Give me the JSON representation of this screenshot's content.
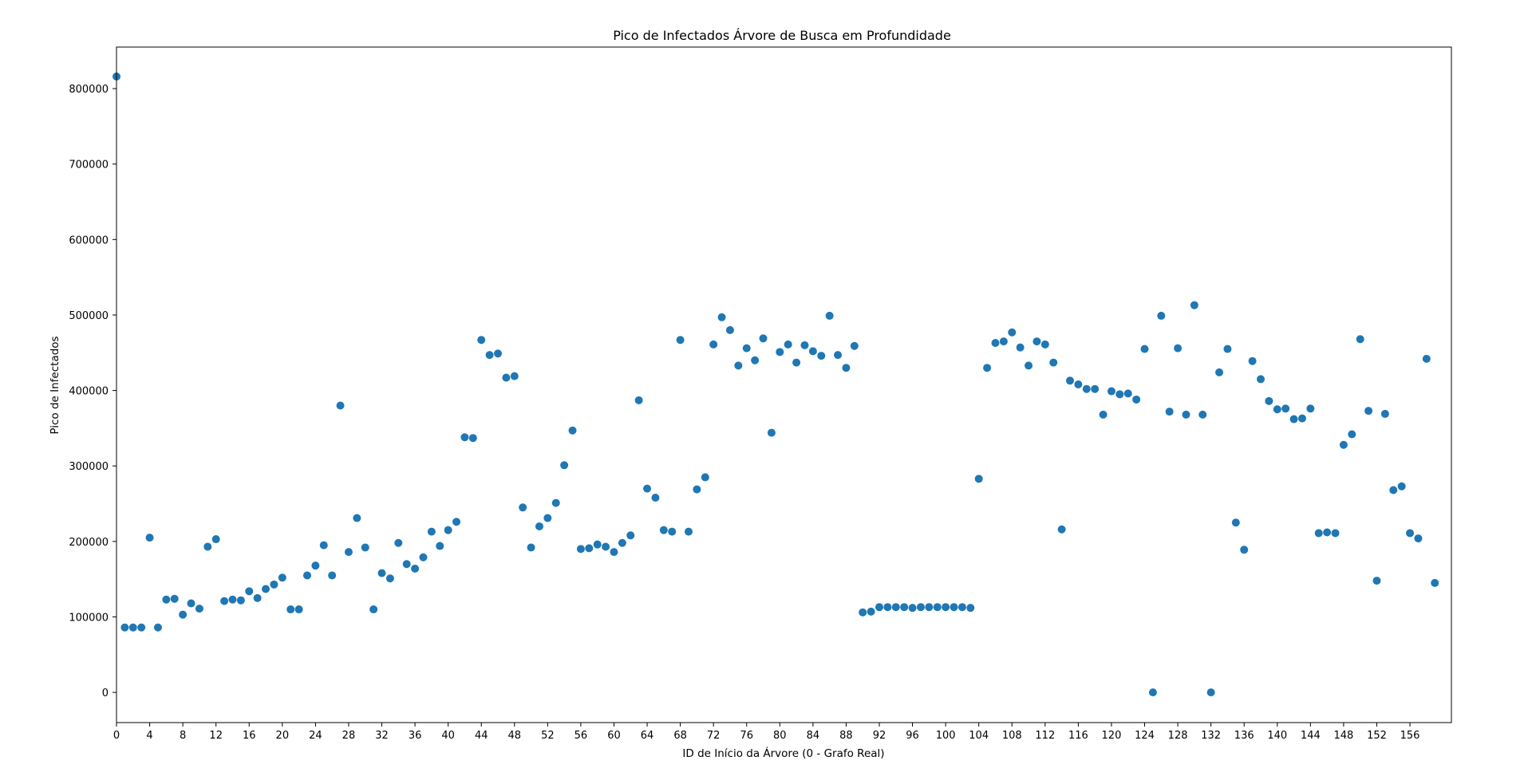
{
  "chart_data": {
    "type": "scatter",
    "title": "Pico de Infectados Árvore de Busca em Profundidade",
    "xlabel": "ID de Início da Árvore (0 - Grafo Real)",
    "ylabel": "Pico de Infectados",
    "xlim": [
      0,
      161
    ],
    "ylim": [
      -40000,
      855000
    ],
    "xticks": [
      0,
      4,
      8,
      12,
      16,
      20,
      24,
      28,
      32,
      36,
      40,
      44,
      48,
      52,
      56,
      60,
      64,
      68,
      72,
      76,
      80,
      84,
      88,
      92,
      96,
      100,
      104,
      108,
      112,
      116,
      120,
      124,
      128,
      132,
      136,
      140,
      144,
      148,
      152,
      156
    ],
    "yticks": [
      0,
      100000,
      200000,
      300000,
      400000,
      500000,
      600000,
      700000,
      800000
    ],
    "grid": false,
    "point_color": "#1f77b4",
    "x": [
      0,
      1,
      2,
      3,
      4,
      5,
      6,
      7,
      8,
      9,
      10,
      11,
      12,
      13,
      14,
      15,
      16,
      17,
      18,
      19,
      20,
      21,
      22,
      23,
      24,
      25,
      26,
      27,
      28,
      29,
      30,
      31,
      32,
      33,
      34,
      35,
      36,
      37,
      38,
      39,
      40,
      41,
      42,
      43,
      44,
      45,
      46,
      47,
      48,
      49,
      50,
      51,
      52,
      53,
      54,
      55,
      56,
      57,
      58,
      59,
      60,
      61,
      62,
      63,
      64,
      65,
      66,
      67,
      68,
      69,
      70,
      71,
      72,
      73,
      74,
      75,
      76,
      77,
      78,
      79,
      80,
      81,
      82,
      83,
      84,
      85,
      86,
      87,
      88,
      89,
      90,
      91,
      92,
      93,
      94,
      95,
      96,
      97,
      98,
      99,
      100,
      101,
      102,
      103,
      104,
      105,
      106,
      107,
      108,
      109,
      110,
      111,
      112,
      113,
      114,
      115,
      116,
      117,
      118,
      119,
      120,
      121,
      122,
      123,
      124,
      125,
      126,
      127,
      128,
      129,
      130,
      131,
      132,
      133,
      134,
      135,
      136,
      137,
      138,
      139,
      140,
      141,
      142,
      143,
      144,
      145,
      146,
      147,
      148,
      149,
      150,
      151,
      152,
      153,
      154,
      155,
      156,
      157,
      158,
      159
    ],
    "y": [
      816000,
      86000,
      86000,
      86000,
      205000,
      86000,
      123000,
      124000,
      103000,
      118000,
      111000,
      193000,
      203000,
      121000,
      123000,
      122000,
      134000,
      125000,
      137000,
      143000,
      152000,
      110000,
      110000,
      155000,
      168000,
      195000,
      155000,
      380000,
      186000,
      231000,
      192000,
      110000,
      158000,
      151000,
      198000,
      170000,
      164000,
      179000,
      213000,
      194000,
      215000,
      226000,
      338000,
      337000,
      467000,
      447000,
      449000,
      417000,
      419000,
      245000,
      192000,
      220000,
      231000,
      251000,
      301000,
      347000,
      190000,
      191000,
      196000,
      193000,
      186000,
      198000,
      208000,
      387000,
      270000,
      258000,
      215000,
      213000,
      467000,
      213000,
      269000,
      285000,
      461000,
      497000,
      480000,
      433000,
      456000,
      440000,
      469000,
      344000,
      451000,
      461000,
      437000,
      460000,
      452000,
      446000,
      499000,
      447000,
      430000,
      459000,
      106000,
      107000,
      113000,
      113000,
      113000,
      113000,
      112000,
      113000,
      113000,
      113000,
      113000,
      113000,
      113000,
      112000,
      283000,
      430000,
      463000,
      465000,
      477000,
      457000,
      433000,
      465000,
      461000,
      437000,
      216000,
      413000,
      408000,
      402000,
      402000,
      368000,
      399000,
      395000,
      396000,
      388000,
      455000,
      0,
      499000,
      372000,
      456000,
      368000,
      513000,
      368000,
      0,
      424000,
      455000,
      225000,
      189000,
      439000,
      415000,
      386000,
      375000,
      376000,
      362000,
      363000,
      376000,
      211000,
      212000,
      211000,
      328000,
      342000,
      468000,
      373000,
      148000,
      369000,
      268000,
      273000,
      211000,
      204000,
      442000,
      145000
    ]
  }
}
